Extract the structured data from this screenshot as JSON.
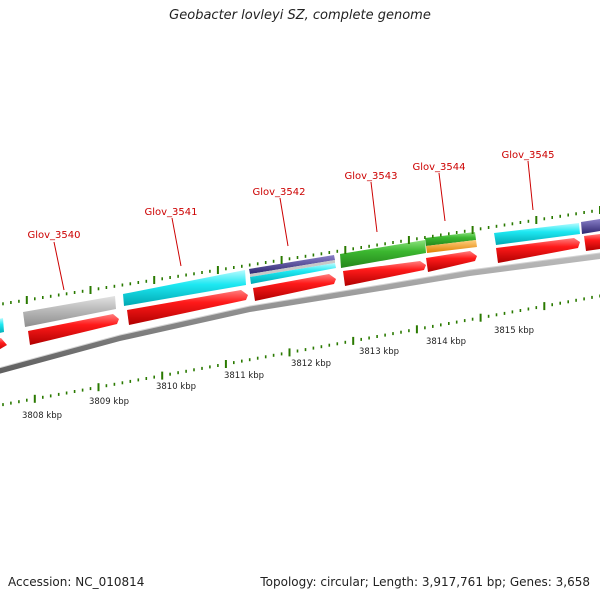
{
  "title": "Geobacter lovleyi SZ, complete genome",
  "footer": {
    "accession": "Accession: NC_010814",
    "summary": "Topology: circular; Length: 3,917,761 bp; Genes: 3,658"
  },
  "gene_labels": [
    "Glov_3540",
    "Glov_3541",
    "Glov_3542",
    "Glov_3543",
    "Glov_3544",
    "Glov_3545"
  ],
  "kbp_labels": [
    "3808 kbp",
    "3809 kbp",
    "3810 kbp",
    "3811 kbp",
    "3812 kbp",
    "3813 kbp",
    "3814 kbp",
    "3815 kbp"
  ],
  "colors": {
    "label_red": "#cc0000",
    "tick_green": "#2a7a00",
    "backbone": "#777777",
    "cds_red": "#ee0000",
    "cyan": "#00e5ee",
    "grey": "#b5b5b5",
    "green": "#3cb830",
    "orange": "#ff9900",
    "navy": "#4a4088"
  }
}
